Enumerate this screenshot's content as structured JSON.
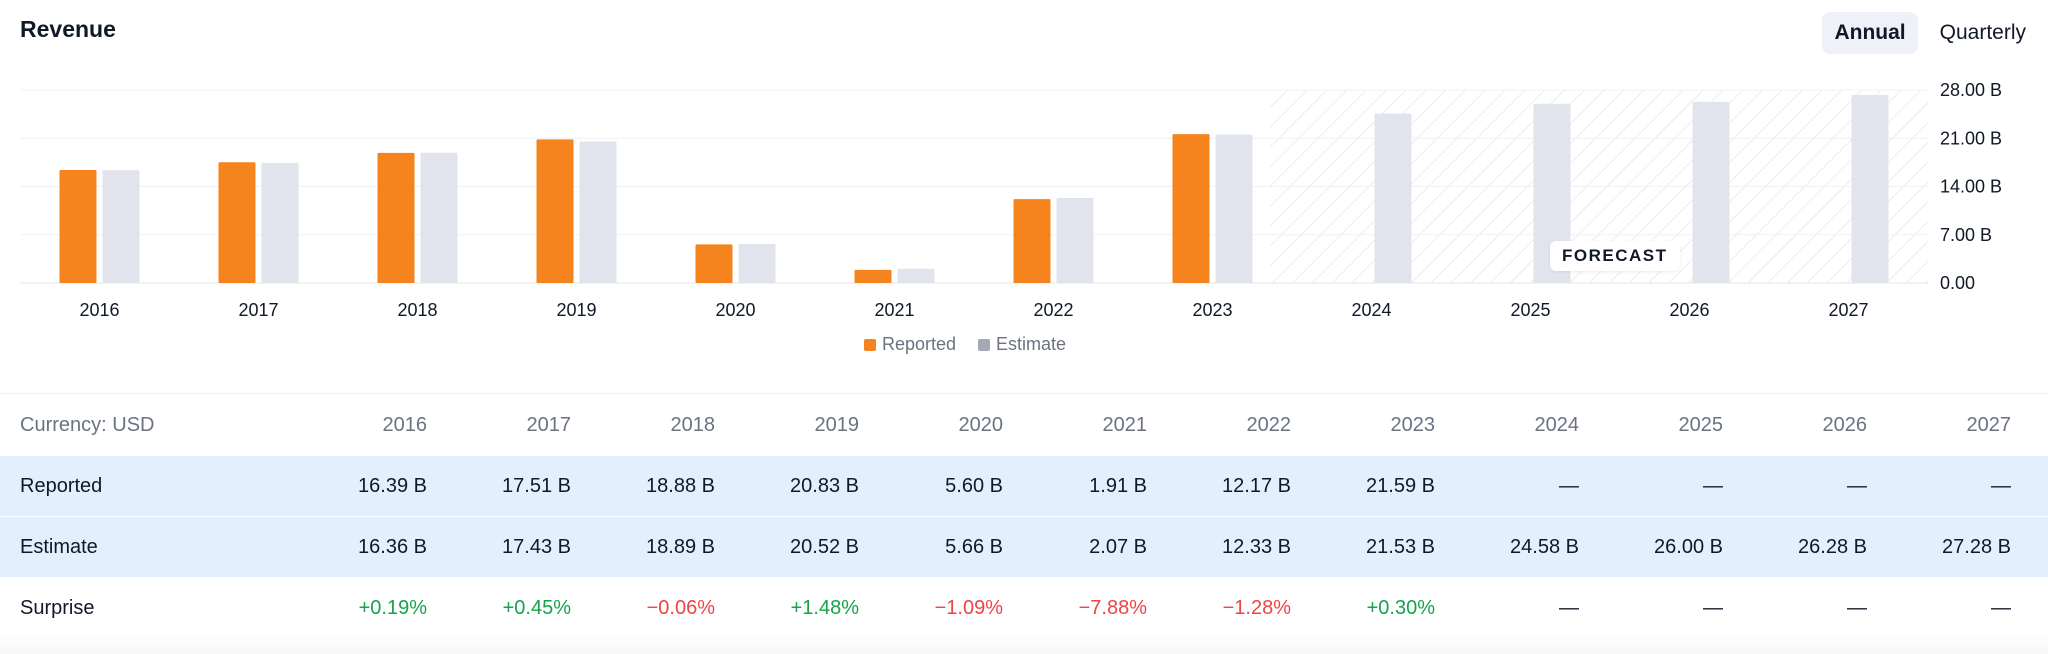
{
  "title": "Revenue",
  "toggle": {
    "annual": "Annual",
    "quarterly": "Quarterly"
  },
  "forecast_label": "FORECAST",
  "legend": {
    "reported": "Reported",
    "estimate": "Estimate"
  },
  "colors": {
    "reported": "#f5841f",
    "estimate": "#e1e4ed",
    "positive": "#16a34a",
    "negative": "#ef4444"
  },
  "chart_data": {
    "type": "bar",
    "categories": [
      "2016",
      "2017",
      "2018",
      "2019",
      "2020",
      "2021",
      "2022",
      "2023",
      "2024",
      "2025",
      "2026",
      "2027"
    ],
    "series": [
      {
        "name": "Reported",
        "values": [
          16.39,
          17.51,
          18.88,
          20.83,
          5.6,
          1.91,
          12.17,
          21.59,
          null,
          null,
          null,
          null
        ]
      },
      {
        "name": "Estimate",
        "values": [
          16.36,
          17.43,
          18.89,
          20.52,
          5.66,
          2.07,
          12.33,
          21.53,
          24.58,
          26.0,
          26.28,
          27.28
        ]
      }
    ],
    "ylim": [
      0,
      28
    ],
    "yticks": [
      "0.00",
      "7.00 B",
      "14.00 B",
      "21.00 B",
      "28.00 B"
    ],
    "ytick_values": [
      0,
      7,
      14,
      21,
      28
    ],
    "forecast_start": "2024",
    "legend_position": "bottom",
    "grid": true
  },
  "table": {
    "currency_label": "Currency: USD",
    "years": [
      "2016",
      "2017",
      "2018",
      "2019",
      "2020",
      "2021",
      "2022",
      "2023",
      "2024",
      "2025",
      "2026",
      "2027"
    ],
    "rows": [
      {
        "label": "Reported",
        "values": [
          "16.39 B",
          "17.51 B",
          "18.88 B",
          "20.83 B",
          "5.60 B",
          "1.91 B",
          "12.17 B",
          "21.59 B",
          "—",
          "—",
          "—",
          "—"
        ]
      },
      {
        "label": "Estimate",
        "values": [
          "16.36 B",
          "17.43 B",
          "18.89 B",
          "20.52 B",
          "5.66 B",
          "2.07 B",
          "12.33 B",
          "21.53 B",
          "24.58 B",
          "26.00 B",
          "26.28 B",
          "27.28 B"
        ]
      },
      {
        "label": "Surprise",
        "values": [
          "+0.19%",
          "+0.45%",
          "−0.06%",
          "+1.48%",
          "−1.09%",
          "−7.88%",
          "−1.28%",
          "+0.30%",
          "—",
          "—",
          "—",
          "—"
        ]
      }
    ]
  }
}
